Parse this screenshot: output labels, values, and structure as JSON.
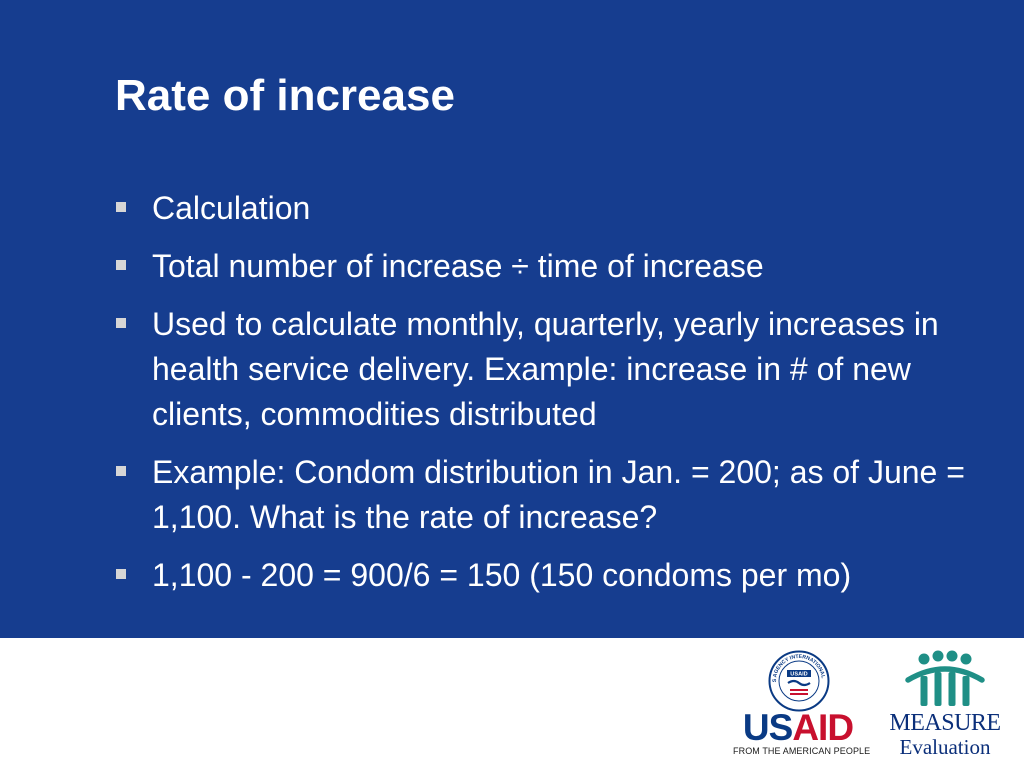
{
  "slide": {
    "title": "Rate of increase",
    "bullets": [
      {
        "text": "Calculation"
      },
      {
        "text": "Total number of increase ÷ time of increase"
      },
      {
        "text": "Used to calculate monthly, quarterly, yearly increases in health service delivery. Example: increase in # of new clients, commodities distributed"
      },
      {
        "text": "Example: Condom distribution in Jan. = 200; as of June = 1,100. What is the rate of increase?"
      },
      {
        "text": "1,100 - 200 = 900/6 = 150 (150 condoms per mo)"
      }
    ]
  },
  "logos": {
    "usaid": {
      "word_part1": "US",
      "word_part2": "AID",
      "tagline": "FROM THE AMERICAN PEOPLE",
      "seal_text": "UNITED STATES AGENCY INTERNATIONAL DEVELOPMENT",
      "seal_badge": "USAID"
    },
    "measure": {
      "word": "MEASURE",
      "subword": "Evaluation"
    }
  },
  "colors": {
    "background_blue": "#163d8f",
    "text_white": "#ffffff",
    "bullet_grey": "#d6d6d6",
    "usaid_blue": "#0a3a84",
    "usaid_red": "#c8102e",
    "measure_teal": "#1f8f86",
    "measure_navy": "#0b2f7a"
  }
}
